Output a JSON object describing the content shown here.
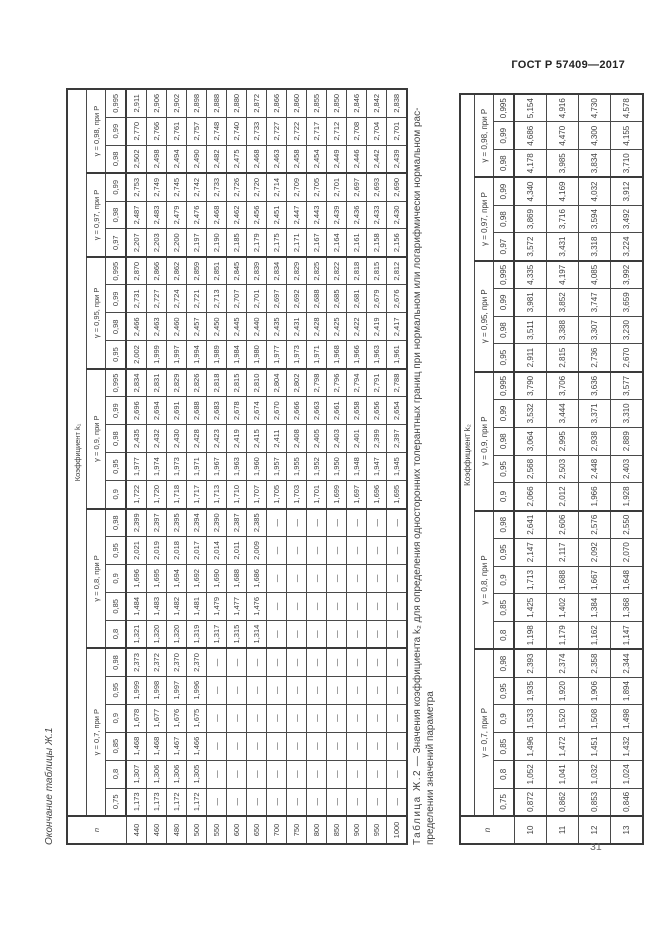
{
  "page": {
    "header": "ГОСТ Р 57409—2017",
    "page_number": "31"
  },
  "table1": {
    "caption": "Окончание таблицы Ж.1",
    "coef_label": "Коэффициент k₁",
    "n_label": "n",
    "groups": [
      {
        "label": "γ = 0,7, при Р",
        "p": [
          "0,75",
          "0,8",
          "0,85",
          "0,9",
          "0,95",
          "0,98"
        ]
      },
      {
        "label": "γ = 0,8, при Р",
        "p": [
          "0,8",
          "0,85",
          "0,9",
          "0,95",
          "0,98"
        ]
      },
      {
        "label": "γ = 0,9, при Р",
        "p": [
          "0,9",
          "0,95",
          "0,98",
          "0,99",
          "0,995"
        ]
      },
      {
        "label": "γ = 0,95, при Р",
        "p": [
          "0,95",
          "0,98",
          "0,99",
          "0,995"
        ]
      },
      {
        "label": "γ = 0,97, при Р",
        "p": [
          "0,97",
          "0,98",
          "0,99"
        ]
      },
      {
        "label": "γ = 0,98, при Р",
        "p": [
          "0,98",
          "0,99",
          "0,995"
        ]
      }
    ],
    "rows": [
      {
        "n": "440",
        "v": [
          "1,173",
          "1,307",
          "1,468",
          "1,678",
          "1,999",
          "2,373",
          "1,321",
          "1,484",
          "1,696",
          "2,021",
          "2,399",
          "1,722",
          "1,977",
          "2,435",
          "2,696",
          "2,834",
          "2,002",
          "2,466",
          "2,731",
          "2,870",
          "2,207",
          "2,487",
          "2,753",
          "2,502",
          "2,770",
          "2,911"
        ]
      },
      {
        "n": "460",
        "v": [
          "1,173",
          "1,306",
          "1,468",
          "1,677",
          "1,998",
          "2,372",
          "1,320",
          "1,483",
          "1,695",
          "2,019",
          "2,397",
          "1,720",
          "1,974",
          "2,432",
          "2,694",
          "2,831",
          "1,999",
          "2,463",
          "2,727",
          "2,866",
          "2,203",
          "2,483",
          "2,749",
          "2,498",
          "2,766",
          "2,906"
        ]
      },
      {
        "n": "480",
        "v": [
          "1,172",
          "1,306",
          "1,467",
          "1,676",
          "1,997",
          "2,370",
          "1,320",
          "1,482",
          "1,694",
          "2,018",
          "2,395",
          "1,718",
          "1,973",
          "2,430",
          "2,691",
          "2,829",
          "1,997",
          "2,460",
          "2,724",
          "2,862",
          "2,200",
          "2,479",
          "2,745",
          "2,494",
          "2,761",
          "2,902"
        ]
      },
      {
        "n": "500",
        "v": [
          "1,172",
          "1,305",
          "1,466",
          "1,675",
          "1,996",
          "2,370",
          "1,319",
          "1,481",
          "1,692",
          "2,017",
          "2,394",
          "1,717",
          "1,971",
          "2,428",
          "2,688",
          "2,826",
          "1,994",
          "2,457",
          "2,721",
          "2,859",
          "2,197",
          "2,476",
          "2,742",
          "2,490",
          "2,757",
          "2,898"
        ]
      },
      {
        "n": "550",
        "v": [
          "—",
          "—",
          "—",
          "—",
          "—",
          "—",
          "1,317",
          "1,479",
          "1,690",
          "2,014",
          "2,390",
          "1,713",
          "1,967",
          "2,423",
          "2,683",
          "2,818",
          "1,989",
          "2,450",
          "2,713",
          "2,851",
          "2,190",
          "2,468",
          "2,733",
          "2,482",
          "2,748",
          "2,888"
        ]
      },
      {
        "n": "600",
        "v": [
          "—",
          "—",
          "—",
          "—",
          "—",
          "—",
          "1,315",
          "1,477",
          "1,688",
          "2,011",
          "2,387",
          "1,710",
          "1,963",
          "2,419",
          "2,678",
          "2,815",
          "1,984",
          "2,445",
          "2,707",
          "2,845",
          "2,185",
          "2,462",
          "2,726",
          "2,475",
          "2,740",
          "2,880"
        ]
      },
      {
        "n": "650",
        "v": [
          "—",
          "—",
          "—",
          "—",
          "—",
          "—",
          "1,314",
          "1,476",
          "1,686",
          "2,009",
          "2,385",
          "1,707",
          "1,960",
          "2,415",
          "2,674",
          "2,810",
          "1,980",
          "2,440",
          "2,701",
          "2,839",
          "2,179",
          "2,456",
          "2,720",
          "2,468",
          "2,733",
          "2,872"
        ]
      },
      {
        "n": "700",
        "v": [
          "—",
          "—",
          "—",
          "—",
          "—",
          "—",
          "—",
          "—",
          "—",
          "—",
          "—",
          "1,705",
          "1,957",
          "2,411",
          "2,670",
          "2,804",
          "1,977",
          "2,435",
          "2,697",
          "2,834",
          "2,175",
          "2,451",
          "2,714",
          "2,463",
          "2,727",
          "2,866"
        ]
      },
      {
        "n": "750",
        "v": [
          "—",
          "—",
          "—",
          "—",
          "—",
          "—",
          "—",
          "—",
          "—",
          "—",
          "—",
          "1,703",
          "1,955",
          "2,408",
          "2,666",
          "2,802",
          "1,973",
          "2,431",
          "2,692",
          "2,829",
          "2,171",
          "2,447",
          "2,709",
          "2,458",
          "2,722",
          "2,860"
        ]
      },
      {
        "n": "800",
        "v": [
          "—",
          "—",
          "—",
          "—",
          "—",
          "—",
          "—",
          "—",
          "—",
          "—",
          "—",
          "1,701",
          "1,952",
          "2,405",
          "2,663",
          "2,798",
          "1,971",
          "2,428",
          "2,688",
          "2,825",
          "2,167",
          "2,443",
          "2,705",
          "2,454",
          "2,717",
          "2,855"
        ]
      },
      {
        "n": "850",
        "v": [
          "—",
          "—",
          "—",
          "—",
          "—",
          "—",
          "—",
          "—",
          "—",
          "—",
          "—",
          "1,699",
          "1,950",
          "2,403",
          "2,661",
          "2,796",
          "1,968",
          "2,425",
          "2,685",
          "2,822",
          "2,164",
          "2,439",
          "2,701",
          "2,449",
          "2,712",
          "2,850"
        ]
      },
      {
        "n": "900",
        "v": [
          "—",
          "—",
          "—",
          "—",
          "—",
          "—",
          "—",
          "—",
          "—",
          "—",
          "—",
          "1,697",
          "1,948",
          "2,401",
          "2,658",
          "2,794",
          "1,966",
          "2,422",
          "2,681",
          "2,818",
          "2,161",
          "2,436",
          "2,697",
          "2,446",
          "2,708",
          "2,846"
        ]
      },
      {
        "n": "950",
        "v": [
          "—",
          "—",
          "—",
          "—",
          "—",
          "—",
          "—",
          "—",
          "—",
          "—",
          "—",
          "1,696",
          "1,947",
          "2,399",
          "2,656",
          "2,791",
          "1,963",
          "2,419",
          "2,679",
          "2,815",
          "2,158",
          "2,433",
          "2,693",
          "2,442",
          "2,704",
          "2,842"
        ]
      },
      {
        "n": "1000",
        "v": [
          "—",
          "—",
          "—",
          "—",
          "—",
          "—",
          "—",
          "—",
          "—",
          "—",
          "—",
          "1,695",
          "1,945",
          "2,397",
          "2,654",
          "2,788",
          "1,961",
          "2,417",
          "2,676",
          "2,812",
          "2,156",
          "2,430",
          "2,690",
          "2,439",
          "2,701",
          "2,838"
        ]
      }
    ]
  },
  "table2": {
    "caption_title": "Таблица Ж.2",
    "caption_line1": " — Значения коэффициента k₂ для определения односторонних толерантных границ при нормальном или логарифмически нормальном рас-",
    "caption_line2": "пределении значений параметра",
    "coef_label": "Коэффициент k₂",
    "n_label": "n",
    "groups": [
      {
        "label": "γ = 0,7, при Р",
        "p": [
          "0,75",
          "0,8",
          "0,85",
          "0,9",
          "0,95",
          "0,98"
        ]
      },
      {
        "label": "γ = 0,8, при Р",
        "p": [
          "0,8",
          "0,85",
          "0,9",
          "0,95",
          "0,98"
        ]
      },
      {
        "label": "γ = 0,9, при Р",
        "p": [
          "0,9",
          "0,95",
          "0,98",
          "0,99",
          "0,995"
        ]
      },
      {
        "label": "γ = 0,95, при Р",
        "p": [
          "0,95",
          "0,98",
          "0,99",
          "0,995"
        ]
      },
      {
        "label": "γ = 0,97, при Р",
        "p": [
          "0,97",
          "0,98",
          "0,99"
        ]
      },
      {
        "label": "γ = 0,98, при Р",
        "p": [
          "0,98",
          "0,99",
          "0,995"
        ]
      }
    ],
    "rows": [
      {
        "n": "10",
        "v": [
          "0,872",
          "1,052",
          "1,496",
          "1,533",
          "1,935",
          "2,393",
          "1,198",
          "1,425",
          "1,713",
          "2,147",
          "2,641",
          "2,066",
          "2,568",
          "3,064",
          "3,532",
          "3,790",
          "2,911",
          "3,511",
          "3,981",
          "4,335",
          "3,572",
          "3,869",
          "4,340",
          "4,178",
          "4,686",
          "5,154"
        ]
      },
      {
        "n": "11",
        "v": [
          "0,862",
          "1,041",
          "1,472",
          "1,520",
          "1,920",
          "2,374",
          "1,179",
          "1,402",
          "1,688",
          "2,117",
          "2,606",
          "2,012",
          "2,503",
          "2,995",
          "3,444",
          "3,706",
          "2,815",
          "3,388",
          "3,852",
          "4,197",
          "3,431",
          "3,716",
          "4,169",
          "3,985",
          "4,470",
          "4,916"
        ]
      },
      {
        "n": "12",
        "v": [
          "0,853",
          "1,032",
          "1,451",
          "1,508",
          "1,906",
          "2,358",
          "1,162",
          "1,384",
          "1,667",
          "2,092",
          "2,576",
          "1,966",
          "2,448",
          "2,938",
          "3,371",
          "3,636",
          "2,736",
          "3,307",
          "3,747",
          "4,085",
          "3,318",
          "3,594",
          "4,032",
          "3,834",
          "4,300",
          "4,730"
        ]
      },
      {
        "n": "13",
        "v": [
          "0,846",
          "1,024",
          "1,432",
          "1,498",
          "1,894",
          "2,344",
          "1,147",
          "1,368",
          "1,648",
          "2,070",
          "2,550",
          "1,928",
          "2,403",
          "2,889",
          "3,310",
          "3,577",
          "2,670",
          "3,230",
          "3,659",
          "3,992",
          "3,224",
          "3,492",
          "3,912",
          "3,710",
          "4,155",
          "4,578"
        ]
      }
    ]
  }
}
